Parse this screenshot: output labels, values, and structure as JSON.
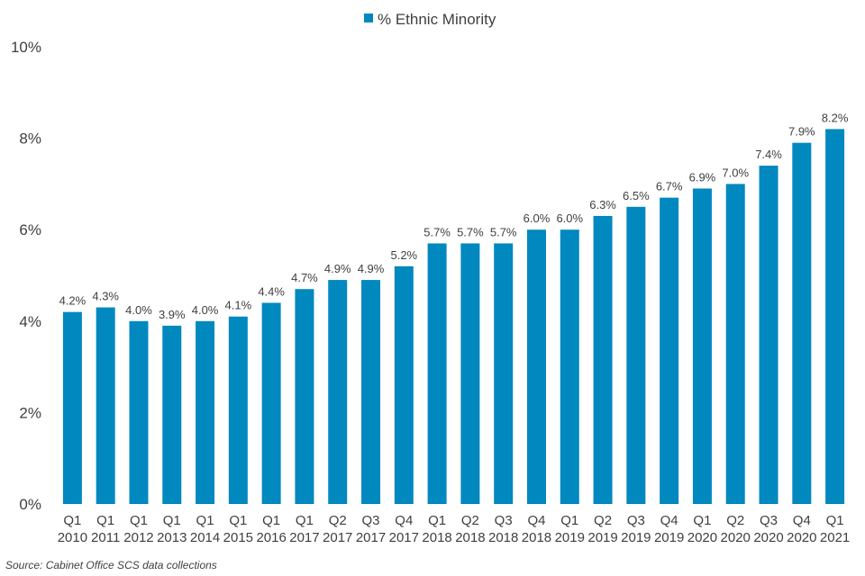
{
  "chart_data": {
    "type": "bar",
    "categories": [
      [
        "Q1",
        "2010"
      ],
      [
        "Q1",
        "2011"
      ],
      [
        "Q1",
        "2012"
      ],
      [
        "Q1",
        "2013"
      ],
      [
        "Q1",
        "2014"
      ],
      [
        "Q1",
        "2015"
      ],
      [
        "Q1",
        "2016"
      ],
      [
        "Q1",
        "2017"
      ],
      [
        "Q2",
        "2017"
      ],
      [
        "Q3",
        "2017"
      ],
      [
        "Q4",
        "2017"
      ],
      [
        "Q1",
        "2018"
      ],
      [
        "Q2",
        "2018"
      ],
      [
        "Q3",
        "2018"
      ],
      [
        "Q4",
        "2018"
      ],
      [
        "Q1",
        "2019"
      ],
      [
        "Q2",
        "2019"
      ],
      [
        "Q3",
        "2019"
      ],
      [
        "Q4",
        "2019"
      ],
      [
        "Q1",
        "2020"
      ],
      [
        "Q2",
        "2020"
      ],
      [
        "Q3",
        "2020"
      ],
      [
        "Q4",
        "2020"
      ],
      [
        "Q1",
        "2021"
      ]
    ],
    "series": [
      {
        "name": "% Ethnic Minority",
        "color": "#0088BF",
        "values": [
          4.2,
          4.3,
          4.0,
          3.9,
          4.0,
          4.1,
          4.4,
          4.7,
          4.9,
          4.9,
          5.2,
          5.7,
          5.7,
          5.7,
          6.0,
          6.0,
          6.3,
          6.5,
          6.7,
          6.9,
          7.0,
          7.4,
          7.9,
          8.2
        ],
        "labels": [
          "4.2%",
          "4.3%",
          "4.0%",
          "3.9%",
          "4.0%",
          "4.1%",
          "4.4%",
          "4.7%",
          "4.9%",
          "4.9%",
          "5.2%",
          "5.7%",
          "5.7%",
          "5.7%",
          "6.0%",
          "6.0%",
          "6.3%",
          "6.5%",
          "6.7%",
          "6.9%",
          "7.0%",
          "7.4%",
          "7.9%",
          "8.2%"
        ]
      }
    ],
    "ylim": [
      0,
      10
    ],
    "yticks": [
      {
        "value": 0,
        "label": "0%"
      },
      {
        "value": 2,
        "label": "2%"
      },
      {
        "value": 4,
        "label": "4%"
      },
      {
        "value": 6,
        "label": "6%"
      },
      {
        "value": 8,
        "label": "8%"
      },
      {
        "value": 10,
        "label": "10%"
      }
    ],
    "grid": false,
    "legend_position": "top-center"
  },
  "legend": {
    "label": "% Ethnic Minority"
  },
  "source": {
    "text": "Source: Cabinet Office SCS data collections"
  }
}
